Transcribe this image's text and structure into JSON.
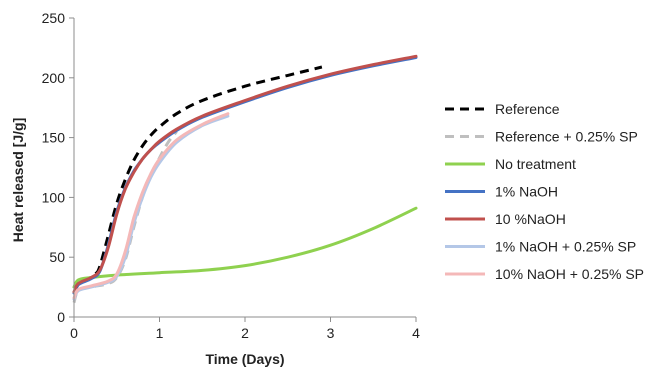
{
  "chart_data": {
    "type": "line",
    "title": "",
    "xlabel": "Time (Days)",
    "ylabel": "Heat released [J/g]",
    "xlim": [
      0,
      4
    ],
    "ylim": [
      0,
      250
    ],
    "xticks": [
      0,
      1,
      2,
      3,
      4
    ],
    "yticks": [
      0,
      50,
      100,
      150,
      200,
      250
    ],
    "grid": false,
    "legend_position": "right",
    "series": [
      {
        "name": "Reference",
        "color": "#000000",
        "dash": "dashed",
        "x": [
          0,
          0.05,
          0.15,
          0.25,
          0.3,
          0.4,
          0.5,
          0.6,
          0.7,
          0.8,
          0.9,
          1.0,
          1.2,
          1.5,
          2.0,
          2.5,
          2.9
        ],
        "y": [
          20,
          27,
          31,
          36,
          42,
          68,
          95,
          115,
          131,
          143,
          152,
          159,
          170,
          181,
          193,
          202,
          209
        ]
      },
      {
        "name": "Reference + 0.25% SP",
        "color": "#bfbfbf",
        "dash": "dashed",
        "x": [
          0,
          0.05,
          0.2,
          0.4,
          0.5,
          0.6,
          0.7,
          0.8,
          0.9,
          1.0,
          1.1,
          1.2
        ],
        "y": [
          12,
          22,
          25,
          28,
          33,
          48,
          75,
          100,
          118,
          133,
          146,
          155
        ]
      },
      {
        "name": "No treatment",
        "color": "#8fd14f",
        "dash": "solid",
        "x": [
          0,
          0.05,
          0.2,
          0.5,
          1.0,
          1.5,
          2.0,
          2.5,
          3.0,
          3.5,
          4.0
        ],
        "y": [
          25,
          31,
          33,
          35,
          37,
          39,
          43,
          50,
          60,
          74,
          91
        ]
      },
      {
        "name": "1% NaOH",
        "color": "#4472c4",
        "dash": "solid",
        "x": [
          0,
          0.05,
          0.2,
          0.3,
          0.4,
          0.5,
          0.6,
          0.7,
          0.8,
          0.9,
          1.0,
          1.2,
          1.5,
          2.0,
          2.5,
          3.0,
          3.5,
          4.0
        ],
        "y": [
          20,
          27,
          32,
          38,
          60,
          88,
          108,
          122,
          132,
          140,
          146,
          156,
          167,
          180,
          192,
          202,
          210,
          217
        ]
      },
      {
        "name": "10 %NaOH",
        "color": "#c0504d",
        "dash": "solid",
        "x": [
          0,
          0.05,
          0.2,
          0.3,
          0.4,
          0.5,
          0.6,
          0.7,
          0.8,
          0.9,
          1.0,
          1.2,
          1.5,
          2.0,
          2.5,
          3.0,
          3.5,
          4.0
        ],
        "y": [
          21,
          28,
          33,
          39,
          58,
          86,
          107,
          121,
          132,
          140,
          147,
          157,
          168,
          181,
          193,
          203,
          211,
          218
        ]
      },
      {
        "name": "1% NaOH + 0.25% SP",
        "color": "#b4c7e7",
        "dash": "solid",
        "x": [
          0,
          0.05,
          0.2,
          0.4,
          0.5,
          0.6,
          0.7,
          0.8,
          0.9,
          1.0,
          1.2,
          1.5,
          1.8
        ],
        "y": [
          15,
          22,
          25,
          29,
          34,
          50,
          78,
          100,
          117,
          129,
          146,
          160,
          168
        ]
      },
      {
        "name": "10% NaOH + 0.25% SP",
        "color": "#f4b8b8",
        "dash": "solid",
        "x": [
          0,
          0.05,
          0.2,
          0.4,
          0.5,
          0.6,
          0.7,
          0.8,
          0.9,
          1.0,
          1.2,
          1.5,
          1.8
        ],
        "y": [
          16,
          23,
          26,
          30,
          36,
          55,
          83,
          104,
          120,
          132,
          148,
          161,
          170
        ]
      }
    ]
  }
}
